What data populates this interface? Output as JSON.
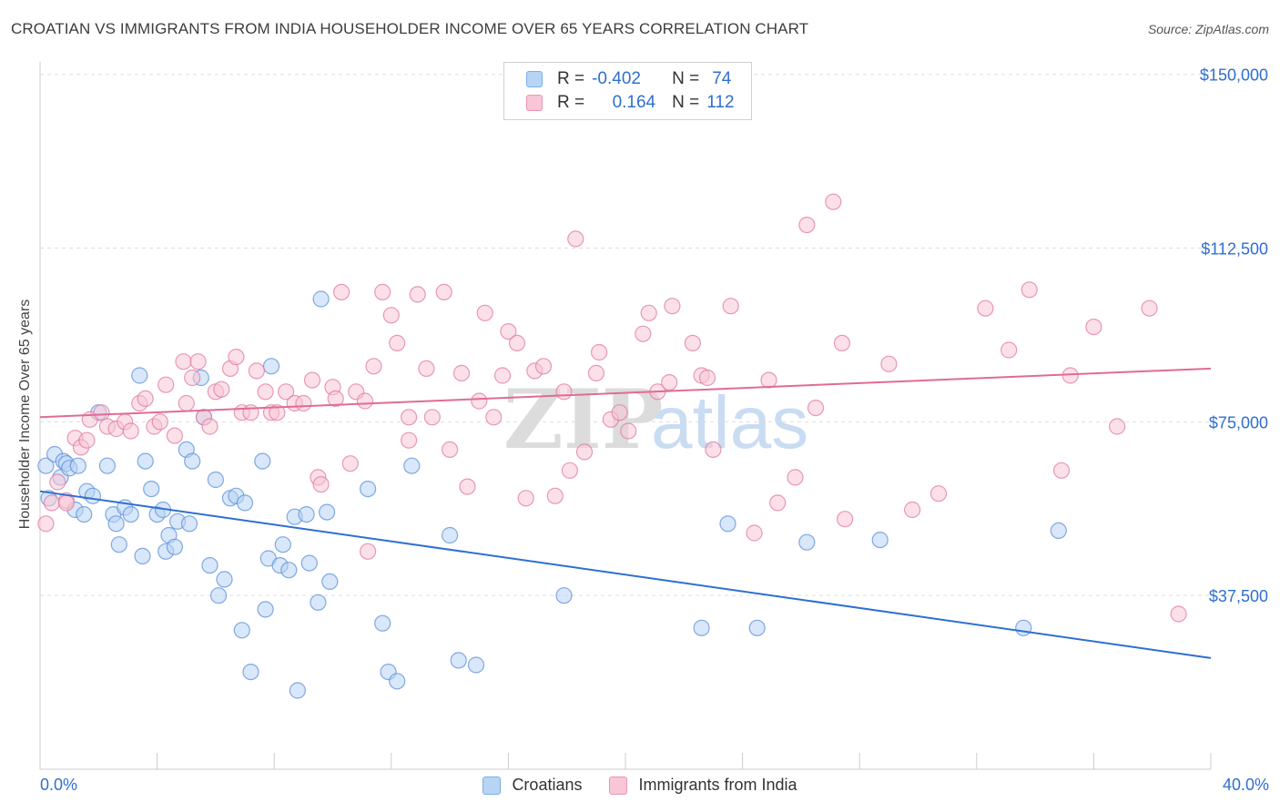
{
  "title": "CROATIAN VS IMMIGRANTS FROM INDIA HOUSEHOLDER INCOME OVER 65 YEARS CORRELATION CHART",
  "source": "Source: ZipAtlas.com",
  "watermark": {
    "zip": "ZIP",
    "atlas": "atlas"
  },
  "legend_stats": [
    {
      "r_label": "R =",
      "r_value": "-0.402",
      "n_label": "N =",
      "n_value": "74",
      "color": "#7aaee8",
      "fill": "#b8d4f4"
    },
    {
      "r_label": "R =",
      "r_value": "0.164",
      "n_label": "N =",
      "n_value": "112",
      "color": "#ec94b2",
      "fill": "#f8c6d6"
    }
  ],
  "bottom_legend": [
    {
      "label": "Croatians",
      "color": "#7aaee8",
      "fill": "#b8d4f4"
    },
    {
      "label": "Immigrants from India",
      "color": "#ec94b2",
      "fill": "#f8c6d6"
    }
  ],
  "chart_data": {
    "type": "scatter",
    "title": "CROATIAN VS IMMIGRANTS FROM INDIA HOUSEHOLDER INCOME OVER 65 YEARS CORRELATION CHART",
    "xlabel": "",
    "ylabel": "Householder Income Over 65 years",
    "xlim": [
      0,
      40
    ],
    "ylim": [
      0,
      155000
    ],
    "x_tick_labels": [
      "0.0%",
      "40.0%"
    ],
    "y_ticks": [
      37500,
      75000,
      112500,
      150000
    ],
    "y_tick_labels": [
      "$37,500",
      "$75,000",
      "$112,500",
      "$150,000"
    ],
    "grid": "horizontal dashed",
    "legend_position": "top-center",
    "series": [
      {
        "name": "Croatians",
        "color": "#5b8fd8",
        "fill": "#b8d4f4",
        "trend": {
          "x": [
            0,
            40
          ],
          "y": [
            60000,
            24000
          ]
        },
        "points": [
          [
            0.2,
            65500
          ],
          [
            0.5,
            68000
          ],
          [
            0.7,
            63000
          ],
          [
            0.8,
            66500
          ],
          [
            0.9,
            66000
          ],
          [
            1.0,
            65000
          ],
          [
            1.2,
            56000
          ],
          [
            1.3,
            65500
          ],
          [
            1.5,
            55000
          ],
          [
            1.6,
            60000
          ],
          [
            1.8,
            59000
          ],
          [
            2.0,
            77000
          ],
          [
            2.3,
            65500
          ],
          [
            2.5,
            55000
          ],
          [
            2.6,
            53000
          ],
          [
            2.7,
            48500
          ],
          [
            2.9,
            56500
          ],
          [
            3.1,
            55000
          ],
          [
            3.4,
            85000
          ],
          [
            3.5,
            46000
          ],
          [
            3.6,
            66500
          ],
          [
            3.8,
            60500
          ],
          [
            4.0,
            55000
          ],
          [
            4.2,
            56000
          ],
          [
            4.3,
            47000
          ],
          [
            4.4,
            50500
          ],
          [
            4.6,
            48000
          ],
          [
            4.7,
            53500
          ],
          [
            5.0,
            69000
          ],
          [
            5.1,
            53000
          ],
          [
            5.2,
            66500
          ],
          [
            5.5,
            84500
          ],
          [
            5.6,
            76000
          ],
          [
            5.8,
            44000
          ],
          [
            6.0,
            62500
          ],
          [
            6.1,
            37500
          ],
          [
            6.3,
            41000
          ],
          [
            6.5,
            58500
          ],
          [
            6.7,
            59000
          ],
          [
            6.9,
            30000
          ],
          [
            7.0,
            57500
          ],
          [
            7.2,
            21000
          ],
          [
            7.6,
            66500
          ],
          [
            7.7,
            34500
          ],
          [
            7.8,
            45500
          ],
          [
            7.9,
            87000
          ],
          [
            8.2,
            44000
          ],
          [
            8.3,
            48500
          ],
          [
            8.5,
            43000
          ],
          [
            8.7,
            54500
          ],
          [
            8.8,
            17000
          ],
          [
            9.1,
            55000
          ],
          [
            9.2,
            44500
          ],
          [
            9.5,
            36000
          ],
          [
            9.6,
            101500
          ],
          [
            9.8,
            55500
          ],
          [
            9.9,
            40500
          ],
          [
            11.2,
            60500
          ],
          [
            11.7,
            31500
          ],
          [
            11.9,
            21000
          ],
          [
            12.2,
            19000
          ],
          [
            12.7,
            65500
          ],
          [
            14.0,
            50500
          ],
          [
            14.3,
            23500
          ],
          [
            14.9,
            22500
          ],
          [
            17.9,
            37500
          ],
          [
            22.6,
            30500
          ],
          [
            23.5,
            53000
          ],
          [
            24.5,
            30500
          ],
          [
            26.2,
            49000
          ],
          [
            28.7,
            49500
          ],
          [
            33.6,
            30500
          ],
          [
            34.8,
            51500
          ],
          [
            0.3,
            58500
          ]
        ]
      },
      {
        "name": "Immigrants from India",
        "color": "#e07aa0",
        "fill": "#f8c6d6",
        "trend": {
          "x": [
            0,
            40
          ],
          "y": [
            76000,
            86500
          ]
        },
        "points": [
          [
            0.2,
            53000
          ],
          [
            0.4,
            57500
          ],
          [
            0.6,
            62000
          ],
          [
            0.9,
            58000
          ],
          [
            1.2,
            71500
          ],
          [
            1.4,
            69500
          ],
          [
            1.6,
            71000
          ],
          [
            1.7,
            75500
          ],
          [
            2.1,
            77000
          ],
          [
            2.3,
            74000
          ],
          [
            2.6,
            73500
          ],
          [
            2.9,
            75000
          ],
          [
            3.1,
            73000
          ],
          [
            3.4,
            79000
          ],
          [
            3.6,
            80000
          ],
          [
            3.9,
            74000
          ],
          [
            4.1,
            75000
          ],
          [
            4.3,
            83000
          ],
          [
            4.6,
            72000
          ],
          [
            4.9,
            88000
          ],
          [
            5.0,
            79000
          ],
          [
            5.2,
            84500
          ],
          [
            5.4,
            88000
          ],
          [
            5.6,
            76000
          ],
          [
            5.8,
            74000
          ],
          [
            6.0,
            81500
          ],
          [
            6.2,
            82000
          ],
          [
            6.5,
            86500
          ],
          [
            6.7,
            89000
          ],
          [
            6.9,
            77000
          ],
          [
            7.2,
            77000
          ],
          [
            7.4,
            86000
          ],
          [
            7.7,
            81500
          ],
          [
            7.9,
            77000
          ],
          [
            8.1,
            77000
          ],
          [
            8.4,
            81500
          ],
          [
            8.7,
            79000
          ],
          [
            9.0,
            79000
          ],
          [
            9.3,
            84000
          ],
          [
            9.5,
            63000
          ],
          [
            9.6,
            61500
          ],
          [
            10.0,
            82500
          ],
          [
            10.1,
            80000
          ],
          [
            10.3,
            103000
          ],
          [
            10.6,
            66000
          ],
          [
            10.8,
            81500
          ],
          [
            11.1,
            79500
          ],
          [
            11.4,
            87000
          ],
          [
            11.7,
            103000
          ],
          [
            12.0,
            98000
          ],
          [
            12.2,
            92000
          ],
          [
            12.6,
            71000
          ],
          [
            12.9,
            102500
          ],
          [
            13.2,
            86500
          ],
          [
            13.4,
            76000
          ],
          [
            13.8,
            103000
          ],
          [
            14.0,
            69000
          ],
          [
            14.4,
            85500
          ],
          [
            14.6,
            61000
          ],
          [
            15.0,
            79500
          ],
          [
            15.2,
            98500
          ],
          [
            15.5,
            76000
          ],
          [
            15.8,
            85000
          ],
          [
            16.0,
            94500
          ],
          [
            16.3,
            92000
          ],
          [
            16.6,
            58500
          ],
          [
            16.9,
            86000
          ],
          [
            17.2,
            87000
          ],
          [
            17.6,
            59000
          ],
          [
            17.9,
            81500
          ],
          [
            18.1,
            64500
          ],
          [
            18.3,
            114500
          ],
          [
            18.6,
            68500
          ],
          [
            19.0,
            85500
          ],
          [
            19.1,
            90000
          ],
          [
            19.5,
            75500
          ],
          [
            19.8,
            77000
          ],
          [
            20.1,
            73000
          ],
          [
            20.6,
            94000
          ],
          [
            20.8,
            98500
          ],
          [
            21.1,
            81500
          ],
          [
            21.5,
            83500
          ],
          [
            21.6,
            100000
          ],
          [
            22.3,
            92000
          ],
          [
            22.6,
            85000
          ],
          [
            22.8,
            84500
          ],
          [
            23.0,
            69000
          ],
          [
            23.6,
            100000
          ],
          [
            24.4,
            51000
          ],
          [
            24.9,
            84000
          ],
          [
            25.2,
            57500
          ],
          [
            25.8,
            63000
          ],
          [
            26.2,
            117500
          ],
          [
            26.5,
            78000
          ],
          [
            27.1,
            122500
          ],
          [
            27.4,
            92000
          ],
          [
            27.5,
            54000
          ],
          [
            29.0,
            87500
          ],
          [
            29.8,
            56000
          ],
          [
            30.7,
            59500
          ],
          [
            32.3,
            99500
          ],
          [
            33.1,
            90500
          ],
          [
            33.8,
            103500
          ],
          [
            34.9,
            64500
          ],
          [
            35.2,
            85000
          ],
          [
            36.0,
            95500
          ],
          [
            36.8,
            74000
          ],
          [
            37.9,
            99500
          ],
          [
            38.9,
            33500
          ],
          [
            11.2,
            47000
          ],
          [
            12.6,
            76000
          ],
          [
            0.9,
            57500
          ]
        ]
      }
    ]
  }
}
